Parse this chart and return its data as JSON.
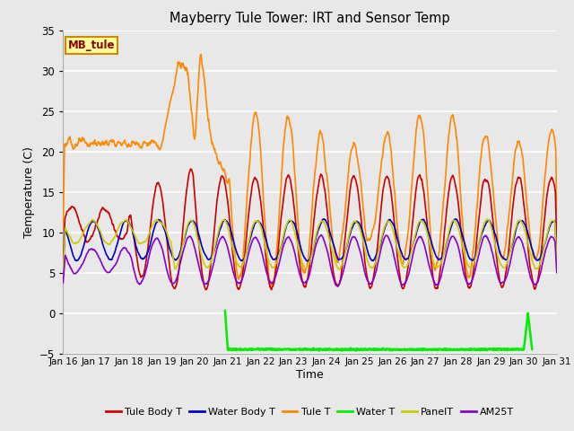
{
  "title": "Mayberry Tule Tower: IRT and Sensor Temp",
  "xlabel": "Time",
  "ylabel": "Temperature (C)",
  "ylim": [
    -5,
    35
  ],
  "xlim": [
    0,
    360
  ],
  "background_color": "#e8e8e8",
  "grid_color": "white",
  "series": {
    "Tule Body T": {
      "color": "#cc0000",
      "lw": 1.2
    },
    "Water Body T": {
      "color": "#0000cc",
      "lw": 1.2
    },
    "Tule T": {
      "color": "#ff8800",
      "lw": 1.2
    },
    "Water T": {
      "color": "#00ee00",
      "lw": 1.8
    },
    "PanelT": {
      "color": "#cccc00",
      "lw": 1.2
    },
    "AM25T": {
      "color": "#8800cc",
      "lw": 1.2
    }
  },
  "xtick_labels": [
    "Jan 16",
    "Jan 17",
    "Jan 18",
    "Jan 19",
    "Jan 20",
    "Jan 21",
    "Jan 22",
    "Jan 23",
    "Jan 24",
    "Jan 25",
    "Jan 26",
    "Jan 27",
    "Jan 28",
    "Jan 29",
    "Jan 30",
    "Jan 31"
  ],
  "xtick_positions": [
    0,
    24,
    48,
    72,
    96,
    120,
    144,
    168,
    192,
    216,
    240,
    264,
    288,
    312,
    336,
    360
  ],
  "yticks": [
    -5,
    0,
    5,
    10,
    15,
    20,
    25,
    30,
    35
  ],
  "legend_label": "MB_tule",
  "legend_bg": "#ffff99",
  "legend_border": "#cc8800"
}
